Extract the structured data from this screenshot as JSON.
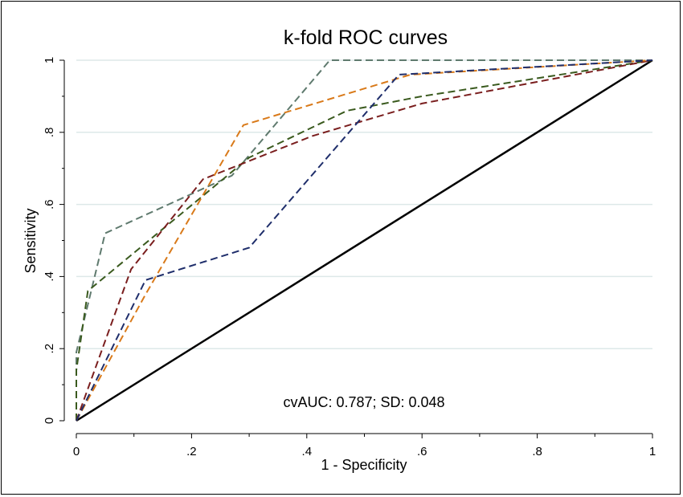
{
  "chart_data": {
    "type": "line",
    "title": "k-fold ROC curves",
    "xlabel": "1 - Specificity",
    "ylabel": "Sensitivity",
    "xlim": [
      0,
      1
    ],
    "ylim": [
      0,
      1
    ],
    "x_ticks": [
      0,
      0.2,
      0.4,
      0.6,
      0.8,
      1
    ],
    "x_tick_labels": [
      "0",
      ".2",
      ".4",
      ".6",
      ".8",
      "1"
    ],
    "y_ticks": [
      0,
      0.2,
      0.4,
      0.6,
      0.8,
      1
    ],
    "y_tick_labels": [
      "0",
      ".2",
      ".4",
      ".6",
      ".8",
      "1"
    ],
    "grid": "horizontal",
    "legend": "none",
    "annotation": "cvAUC: 0.787; SD: 0.048",
    "reference_line": {
      "x": [
        0,
        1
      ],
      "y": [
        0,
        1
      ],
      "color": "#000000",
      "style": "solid"
    },
    "series": [
      {
        "color": "#5F7A6E",
        "x": [
          0,
          0,
          0.05,
          0.27,
          0.44,
          1
        ],
        "y": [
          0,
          0.19,
          0.52,
          0.68,
          1,
          1
        ]
      },
      {
        "color": "#3A5A1E",
        "x": [
          0,
          0,
          0.02,
          0.3,
          0.47,
          0.6,
          1
        ],
        "y": [
          0,
          0.14,
          0.36,
          0.73,
          0.86,
          0.9,
          1
        ]
      },
      {
        "color": "#7A1E1E",
        "x": [
          0,
          0.095,
          0.22,
          0.41,
          0.6,
          1
        ],
        "y": [
          0,
          0.42,
          0.67,
          0.79,
          0.88,
          1
        ]
      },
      {
        "color": "#D97A1A",
        "x": [
          0,
          0.12,
          0.29,
          0.58,
          1
        ],
        "y": [
          0,
          0.35,
          0.82,
          0.96,
          1
        ]
      },
      {
        "color": "#1F2E6B",
        "x": [
          0,
          0.12,
          0.3,
          0.56,
          1
        ],
        "y": [
          0,
          0.39,
          0.48,
          0.96,
          1
        ]
      }
    ]
  }
}
